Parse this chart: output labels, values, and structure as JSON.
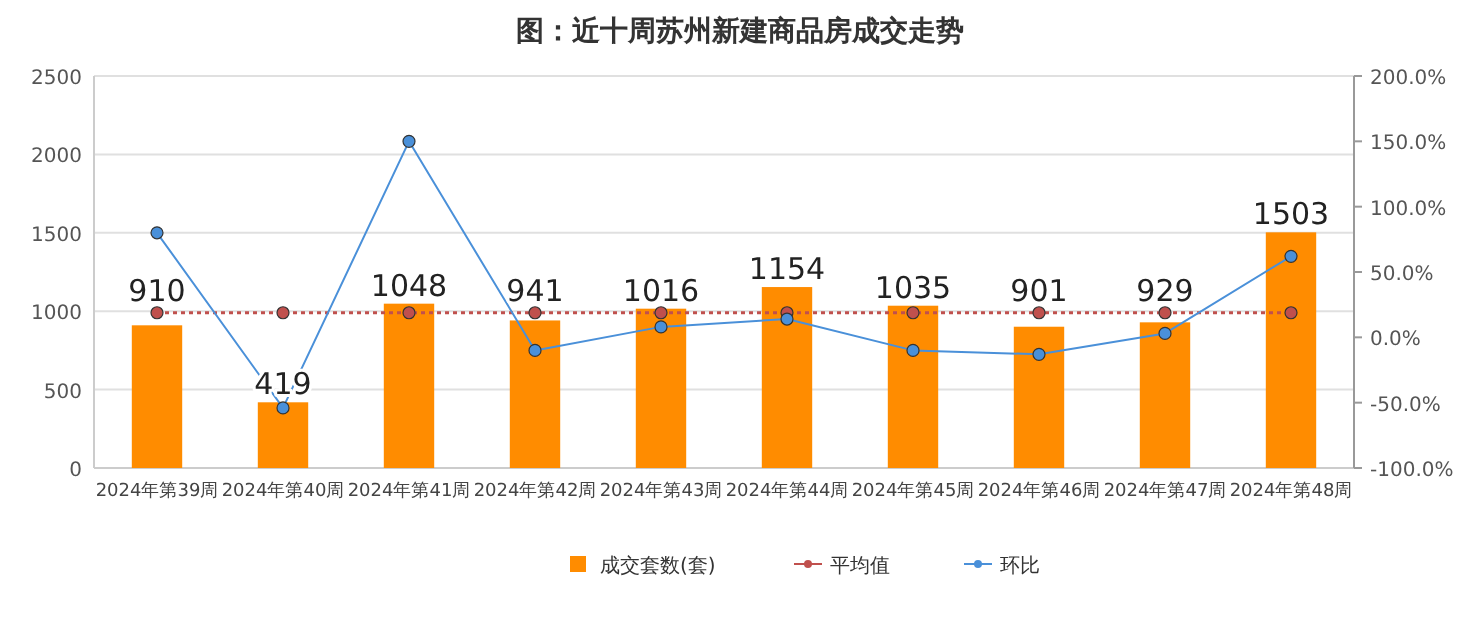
{
  "chart_data": {
    "type": "bar",
    "title": "图：近十周苏州新建商品房成交走势",
    "categories": [
      "2024年第39周",
      "2024年第40周",
      "2024年第41周",
      "2024年第42周",
      "2024年第43周",
      "2024年第44周",
      "2024年第45周",
      "2024年第46周",
      "2024年第47周",
      "2024年第48周"
    ],
    "series": [
      {
        "name": "成交套数(套)",
        "color": "#ff8c00",
        "values": [
          910,
          419,
          1048,
          941,
          1016,
          1154,
          1035,
          901,
          929,
          1503
        ],
        "value_labels": [
          "910",
          "419",
          "1048",
          "941",
          "1016",
          "1154",
          "1035",
          "901",
          "929",
          "1503"
        ]
      },
      {
        "name": "平均值",
        "type": "line",
        "color": "#c0504d",
        "line_style": "dotted",
        "marker": "circle",
        "values": [
          990,
          990,
          990,
          990,
          990,
          990,
          990,
          990,
          990,
          990
        ]
      },
      {
        "name": "环比",
        "type": "line",
        "axis": "y2",
        "color": "#4a90d9",
        "line_style": "solid",
        "marker": "circle",
        "values": [
          80,
          -54,
          150,
          -10,
          8,
          14,
          -10,
          -13,
          3,
          62
        ]
      }
    ],
    "ylim": [
      0,
      2500
    ],
    "yticks": [
      0,
      500,
      1000,
      1500,
      2000,
      2500
    ],
    "y2lim": [
      -100,
      200
    ],
    "y2ticks": [
      {
        "value": -100,
        "label": "-100.0%"
      },
      {
        "value": -50,
        "label": "-50.0%"
      },
      {
        "value": 0,
        "label": "0.0%"
      },
      {
        "value": 50,
        "label": "50.0%"
      },
      {
        "value": 100,
        "label": "100.0%"
      },
      {
        "value": 150,
        "label": "150.0%"
      },
      {
        "value": 200,
        "label": "200.0%"
      }
    ],
    "grid": "y",
    "legend": "bottom"
  }
}
